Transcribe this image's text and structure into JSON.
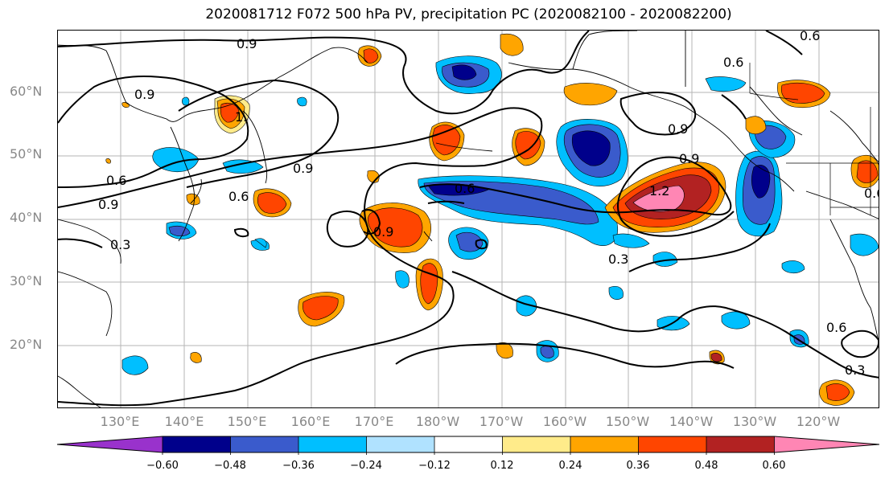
{
  "title": "2020081712 F072 500 hPa PV, precipitation PC (2020082100 - 2020082200)",
  "map": {
    "lat_labels": [
      "60°N",
      "50°N",
      "40°N",
      "30°N",
      "20°N"
    ],
    "lon_labels": [
      "130°E",
      "140°E",
      "150°E",
      "160°E",
      "170°E",
      "180°W",
      "170°W",
      "160°W",
      "150°W",
      "140°W",
      "130°W",
      "120°W"
    ],
    "contour_labels": [
      "0.9",
      "0.9",
      "0.6",
      "1.",
      "0.9",
      "0.6",
      "0.9",
      "0.6",
      "0.9",
      "0.6",
      "0.9",
      "1.2",
      "0.9",
      "0.6",
      "0.3",
      "0.3",
      "0.6",
      "0.3",
      "0.6"
    ]
  },
  "colorbar": {
    "ticks": [
      "−0.60",
      "−0.48",
      "−0.36",
      "−0.24",
      "−0.12",
      "0.12",
      "0.24",
      "0.36",
      "0.48",
      "0.60"
    ],
    "colors": [
      "#9932cc",
      "#00008b",
      "#3a5bcc",
      "#00bfff",
      "#b0e2ff",
      "#ffffff",
      "#ffeb8a",
      "#ffa500",
      "#ff4500",
      "#b22222",
      "#ff86b4"
    ]
  },
  "colors": {
    "neg_strong": "#00008b",
    "neg_mid": "#3a5bcc",
    "neg_light": "#00bfff",
    "neg_faint": "#b0e2ff",
    "pos_faint": "#ffeb8a",
    "pos_light": "#ffa500",
    "pos_mid": "#ff4500",
    "pos_strong": "#b22222",
    "pos_max": "#ff86b4"
  }
}
